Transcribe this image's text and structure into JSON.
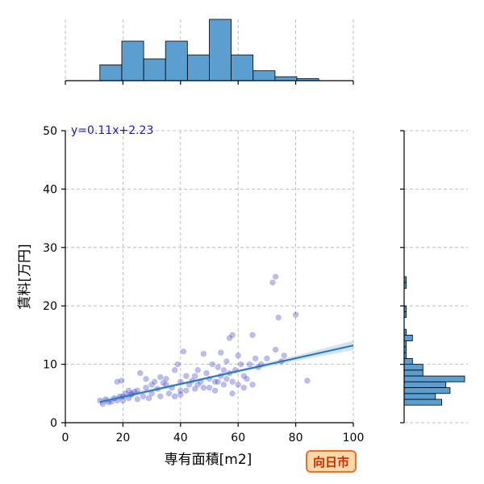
{
  "chart_data": {
    "type": "scatter",
    "xlabel": "専有面積[m2]",
    "ylabel": "賃料[万円]",
    "xlim": [
      0,
      100
    ],
    "ylim": [
      0,
      50
    ],
    "x_ticks": [
      0,
      20,
      40,
      60,
      80,
      100
    ],
    "y_ticks": [
      0,
      10,
      20,
      30,
      40,
      50
    ],
    "grid": true,
    "annotation": "y=0.11x+2.23",
    "badge": "向日市",
    "colors": {
      "points": "#3f3fcf",
      "regression_line": "#2a78b8",
      "confidence_band": "#9cc3e5",
      "histogram_fill": "#5a9fd0",
      "histogram_edge": "#000000",
      "annotation": "#1a1acc",
      "badge_fill": "#ffd8a8",
      "badge_border": "#f07020",
      "badge_text": "#cc2a00",
      "grid": "#b0b0b0"
    },
    "regression": {
      "slope": 0.11,
      "intercept": 2.23,
      "x_range": [
        12,
        100
      ]
    },
    "x_histogram": {
      "bin_edges": [
        12,
        19.6,
        27.2,
        34.8,
        42.4,
        50,
        57.6,
        65.2,
        72.8,
        80.4,
        88
      ],
      "counts": [
        8,
        20,
        11,
        20,
        13,
        31,
        13,
        5,
        2,
        1
      ]
    },
    "y_histogram": {
      "bin_edges": [
        3,
        4,
        5,
        6,
        7,
        8,
        9,
        10,
        11,
        12,
        13,
        14,
        15,
        16,
        17,
        18,
        19,
        20,
        21,
        22,
        23,
        24,
        25
      ],
      "counts": [
        18,
        15,
        22,
        20,
        29,
        9,
        9,
        4,
        1,
        1,
        1,
        4,
        1,
        0,
        0,
        1,
        1,
        0,
        0,
        0,
        1,
        1
      ]
    },
    "points": [
      [
        12,
        3.8
      ],
      [
        13,
        3.2
      ],
      [
        14,
        4.0
      ],
      [
        15,
        3.5
      ],
      [
        16,
        3.6
      ],
      [
        17,
        4.2
      ],
      [
        18,
        3.8
      ],
      [
        19,
        4.5
      ],
      [
        19.5,
        7.2
      ],
      [
        20,
        4.5
      ],
      [
        20,
        3.8
      ],
      [
        21,
        5.0
      ],
      [
        22,
        4.2
      ],
      [
        22,
        5.5
      ],
      [
        23,
        4.8
      ],
      [
        24,
        5.3
      ],
      [
        25,
        4.0
      ],
      [
        25,
        5.5
      ],
      [
        26,
        8.5
      ],
      [
        27,
        4.5
      ],
      [
        28,
        6.0
      ],
      [
        29,
        4.2
      ],
      [
        30,
        5.0
      ],
      [
        30,
        6.5
      ],
      [
        31,
        7.0
      ],
      [
        32,
        5.8
      ],
      [
        33,
        4.5
      ],
      [
        34,
        6.8
      ],
      [
        35,
        7.5
      ],
      [
        36,
        5.0
      ],
      [
        37,
        6.0
      ],
      [
        38,
        4.5
      ],
      [
        38,
        9.0
      ],
      [
        39,
        10.0
      ],
      [
        40,
        5.5
      ],
      [
        40,
        7.0
      ],
      [
        40,
        4.8
      ],
      [
        41,
        12.2
      ],
      [
        42,
        5.5
      ],
      [
        43,
        6.5
      ],
      [
        44,
        7.2
      ],
      [
        45,
        5.8
      ],
      [
        45,
        8.0
      ],
      [
        46,
        6.5
      ],
      [
        47,
        7.0
      ],
      [
        48,
        6.0
      ],
      [
        48,
        11.8
      ],
      [
        49,
        8.5
      ],
      [
        50,
        7.5
      ],
      [
        50,
        6.0
      ],
      [
        51,
        10.0
      ],
      [
        52,
        7.0
      ],
      [
        53,
        9.5
      ],
      [
        53,
        7.0
      ],
      [
        54,
        8.0
      ],
      [
        55,
        6.5
      ],
      [
        55,
        9.0
      ],
      [
        56,
        10.5
      ],
      [
        56,
        7.5
      ],
      [
        57,
        8.5
      ],
      [
        57,
        14.5
      ],
      [
        58,
        15.0
      ],
      [
        58,
        7.0
      ],
      [
        59,
        9.0
      ],
      [
        60,
        11.5
      ],
      [
        60,
        6.5
      ],
      [
        61,
        10.0
      ],
      [
        62,
        8.0
      ],
      [
        62,
        6.0
      ],
      [
        63,
        7.5
      ],
      [
        64,
        10.0
      ],
      [
        65,
        15.0
      ],
      [
        65,
        6.5
      ],
      [
        66,
        11.0
      ],
      [
        67,
        9.5
      ],
      [
        68,
        10.0
      ],
      [
        70,
        11.0
      ],
      [
        72,
        24.0
      ],
      [
        73,
        25.0
      ],
      [
        73,
        12.5
      ],
      [
        74,
        18.0
      ],
      [
        75,
        10.5
      ],
      [
        76,
        11.5
      ],
      [
        80,
        18.5
      ],
      [
        84,
        7.2
      ],
      [
        18,
        7.0
      ],
      [
        23,
        5.0
      ],
      [
        28,
        7.5
      ],
      [
        35,
        6.5
      ],
      [
        42,
        8.0
      ],
      [
        52,
        5.5
      ],
      [
        58,
        5.0
      ],
      [
        33,
        7.8
      ],
      [
        46,
        9.0
      ],
      [
        54,
        12.0
      ]
    ]
  }
}
